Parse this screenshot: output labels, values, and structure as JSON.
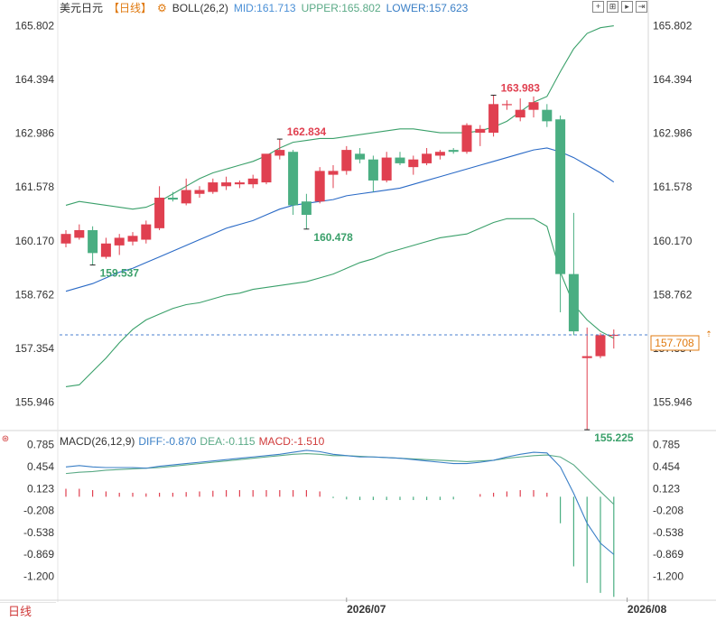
{
  "header": {
    "symbol": "美元日元",
    "period_tag": "【日线】",
    "indicator_name": "BOLL(26,2)",
    "mid_label": "MID:161.713",
    "upper_label": "UPPER:165.802",
    "lower_label": "LOWER:157.623",
    "colors": {
      "mid": "#4a8fd6",
      "upper": "#5aaa86",
      "lower": "#3a7fc6"
    }
  },
  "toolbar": {
    "icons": [
      "fit-icon",
      "expand-icon",
      "next-icon",
      "last-icon"
    ]
  },
  "macd_header": {
    "name": "MACD(26,12,9)",
    "diff_label": "DIFF:-0.870",
    "dea_label": "DEA:-0.115",
    "macd_label": "MACD:-1.510"
  },
  "footer": {
    "period_tab": "日线"
  },
  "colors": {
    "up": "#e04050",
    "down": "#4aae82",
    "boll_mid": "#2a6ac6",
    "boll_band": "#3aa06a",
    "current_line": "#4a7fd0",
    "current_badge": "#e07a10",
    "annotation_up": "#e04050",
    "annotation_down": "#3aa06a",
    "axis_text": "#333333",
    "diff": "#3a7fc6",
    "dea": "#5aaa86"
  },
  "chart_data": [
    {
      "type": "candlestick",
      "ylim": [
        155.25,
        166.05
      ],
      "y_ticks": [
        "165.802",
        "164.394",
        "162.986",
        "161.578",
        "160.170",
        "158.762",
        "157.354",
        "155.946"
      ],
      "x_ticks": [
        {
          "label": "2026/07",
          "index": 21
        },
        {
          "label": "2026/08",
          "index": 42
        }
      ],
      "current_price": "157.708",
      "candles": [
        {
          "o": 160.1,
          "h": 160.45,
          "l": 160.0,
          "c": 160.35
        },
        {
          "o": 160.25,
          "h": 160.6,
          "l": 160.2,
          "c": 160.45
        },
        {
          "o": 160.45,
          "h": 160.55,
          "l": 159.54,
          "c": 159.85
        },
        {
          "o": 159.75,
          "h": 160.25,
          "l": 159.7,
          "c": 160.1
        },
        {
          "o": 160.05,
          "h": 160.35,
          "l": 159.8,
          "c": 160.25
        },
        {
          "o": 160.15,
          "h": 160.4,
          "l": 160.05,
          "c": 160.3
        },
        {
          "o": 160.2,
          "h": 160.7,
          "l": 160.1,
          "c": 160.6
        },
        {
          "o": 160.5,
          "h": 161.6,
          "l": 160.45,
          "c": 161.3
        },
        {
          "o": 161.3,
          "h": 161.45,
          "l": 161.2,
          "c": 161.25
        },
        {
          "o": 161.15,
          "h": 161.8,
          "l": 161.1,
          "c": 161.5
        },
        {
          "o": 161.4,
          "h": 161.6,
          "l": 161.3,
          "c": 161.5
        },
        {
          "o": 161.45,
          "h": 161.8,
          "l": 161.4,
          "c": 161.7
        },
        {
          "o": 161.6,
          "h": 161.85,
          "l": 161.5,
          "c": 161.7
        },
        {
          "o": 161.65,
          "h": 161.75,
          "l": 161.55,
          "c": 161.7
        },
        {
          "o": 161.65,
          "h": 161.9,
          "l": 161.55,
          "c": 161.8
        },
        {
          "o": 161.7,
          "h": 162.35,
          "l": 161.65,
          "c": 162.45
        },
        {
          "o": 162.4,
          "h": 162.83,
          "l": 162.3,
          "c": 162.55
        },
        {
          "o": 162.5,
          "h": 162.55,
          "l": 160.85,
          "c": 161.1
        },
        {
          "o": 161.2,
          "h": 161.4,
          "l": 160.48,
          "c": 160.85
        },
        {
          "o": 161.2,
          "h": 162.1,
          "l": 161.15,
          "c": 162.0
        },
        {
          "o": 161.9,
          "h": 162.15,
          "l": 161.55,
          "c": 162.0
        },
        {
          "o": 162.0,
          "h": 162.65,
          "l": 161.9,
          "c": 162.55
        },
        {
          "o": 162.45,
          "h": 162.6,
          "l": 162.2,
          "c": 162.3
        },
        {
          "o": 162.3,
          "h": 162.4,
          "l": 161.45,
          "c": 161.75
        },
        {
          "o": 161.75,
          "h": 162.5,
          "l": 161.7,
          "c": 162.35
        },
        {
          "o": 162.35,
          "h": 162.5,
          "l": 162.15,
          "c": 162.2
        },
        {
          "o": 162.1,
          "h": 162.4,
          "l": 161.9,
          "c": 162.3
        },
        {
          "o": 162.2,
          "h": 162.6,
          "l": 162.15,
          "c": 162.45
        },
        {
          "o": 162.4,
          "h": 162.55,
          "l": 162.3,
          "c": 162.5
        },
        {
          "o": 162.55,
          "h": 162.6,
          "l": 162.45,
          "c": 162.5
        },
        {
          "o": 162.5,
          "h": 163.25,
          "l": 162.45,
          "c": 163.2
        },
        {
          "o": 163.0,
          "h": 163.2,
          "l": 162.65,
          "c": 163.1
        },
        {
          "o": 163.0,
          "h": 163.98,
          "l": 162.9,
          "c": 163.75
        },
        {
          "o": 163.75,
          "h": 163.85,
          "l": 163.6,
          "c": 163.75
        },
        {
          "o": 163.4,
          "h": 163.9,
          "l": 163.3,
          "c": 163.6
        },
        {
          "o": 163.6,
          "h": 163.95,
          "l": 163.4,
          "c": 163.8
        },
        {
          "o": 163.6,
          "h": 163.75,
          "l": 163.15,
          "c": 163.3
        },
        {
          "o": 163.35,
          "h": 163.45,
          "l": 158.3,
          "c": 159.3
        },
        {
          "o": 159.3,
          "h": 160.9,
          "l": 157.7,
          "c": 157.8
        },
        {
          "o": 157.1,
          "h": 157.9,
          "l": 155.22,
          "c": 157.15
        },
        {
          "o": 157.15,
          "h": 157.75,
          "l": 157.1,
          "c": 157.7
        },
        {
          "o": 157.7,
          "h": 157.85,
          "l": 157.35,
          "c": 157.71
        }
      ],
      "boll_upper": [
        161.1,
        161.2,
        161.15,
        161.1,
        161.05,
        161.0,
        161.05,
        161.2,
        161.4,
        161.6,
        161.8,
        161.95,
        162.05,
        162.15,
        162.25,
        162.4,
        162.6,
        162.75,
        162.8,
        162.85,
        162.85,
        162.9,
        162.95,
        163.0,
        163.05,
        163.1,
        163.1,
        163.05,
        163.0,
        163.0,
        163.0,
        163.05,
        163.15,
        163.3,
        163.55,
        163.8,
        163.95,
        164.6,
        165.2,
        165.6,
        165.75,
        165.8
      ],
      "boll_mid": [
        158.85,
        158.95,
        159.05,
        159.2,
        159.35,
        159.45,
        159.6,
        159.75,
        159.9,
        160.05,
        160.2,
        160.35,
        160.5,
        160.6,
        160.7,
        160.85,
        161.0,
        161.1,
        161.15,
        161.2,
        161.25,
        161.35,
        161.4,
        161.45,
        161.5,
        161.55,
        161.65,
        161.75,
        161.85,
        161.95,
        162.05,
        162.15,
        162.25,
        162.35,
        162.45,
        162.55,
        162.6,
        162.5,
        162.35,
        162.15,
        161.95,
        161.71
      ],
      "boll_lower": [
        156.35,
        156.4,
        156.75,
        157.1,
        157.5,
        157.85,
        158.1,
        158.25,
        158.4,
        158.5,
        158.55,
        158.65,
        158.75,
        158.8,
        158.9,
        158.95,
        159.0,
        159.05,
        159.1,
        159.2,
        159.3,
        159.45,
        159.6,
        159.7,
        159.85,
        159.95,
        160.05,
        160.15,
        160.25,
        160.3,
        160.35,
        160.5,
        160.65,
        160.75,
        160.75,
        160.75,
        160.55,
        159.35,
        158.5,
        158.1,
        157.8,
        157.62
      ],
      "annotations": [
        {
          "text": "162.834",
          "index": 16,
          "price": 162.834,
          "kind": "high"
        },
        {
          "text": "163.983",
          "index": 32,
          "price": 163.983,
          "kind": "high"
        },
        {
          "text": "159.537",
          "index": 2,
          "price": 159.537,
          "kind": "low"
        },
        {
          "text": "160.478",
          "index": 18,
          "price": 160.478,
          "kind": "low"
        },
        {
          "text": "155.225",
          "index": 39,
          "price": 155.225,
          "kind": "low"
        }
      ]
    },
    {
      "type": "macd",
      "ylim": [
        -1.52,
        0.93
      ],
      "y_ticks": [
        "0.785",
        "0.454",
        "0.123",
        "-0.208",
        "-0.538",
        "-0.869",
        "-1.200"
      ],
      "diff": [
        0.45,
        0.47,
        0.45,
        0.44,
        0.44,
        0.44,
        0.43,
        0.46,
        0.48,
        0.5,
        0.52,
        0.54,
        0.56,
        0.58,
        0.6,
        0.62,
        0.64,
        0.67,
        0.7,
        0.68,
        0.64,
        0.62,
        0.6,
        0.6,
        0.59,
        0.58,
        0.56,
        0.54,
        0.52,
        0.5,
        0.5,
        0.52,
        0.55,
        0.6,
        0.64,
        0.67,
        0.66,
        0.45,
        0.05,
        -0.4,
        -0.7,
        -0.87
      ],
      "dea": [
        0.35,
        0.37,
        0.38,
        0.4,
        0.41,
        0.42,
        0.43,
        0.44,
        0.46,
        0.48,
        0.5,
        0.52,
        0.54,
        0.56,
        0.58,
        0.6,
        0.62,
        0.64,
        0.65,
        0.64,
        0.62,
        0.62,
        0.61,
        0.6,
        0.59,
        0.58,
        0.57,
        0.56,
        0.55,
        0.54,
        0.53,
        0.54,
        0.55,
        0.58,
        0.6,
        0.62,
        0.63,
        0.6,
        0.48,
        0.28,
        0.08,
        -0.115
      ],
      "hist": [
        0.12,
        0.12,
        0.1,
        0.08,
        0.06,
        0.06,
        0.05,
        0.06,
        0.06,
        0.07,
        0.08,
        0.09,
        0.1,
        0.1,
        0.1,
        0.1,
        0.1,
        0.1,
        0.1,
        0.08,
        -0.02,
        -0.04,
        -0.05,
        -0.05,
        -0.05,
        -0.05,
        -0.05,
        -0.05,
        -0.05,
        -0.04,
        0.0,
        0.04,
        0.06,
        0.08,
        0.1,
        0.1,
        0.06,
        -0.4,
        -1.05,
        -1.3,
        -1.45,
        -1.51
      ]
    }
  ]
}
